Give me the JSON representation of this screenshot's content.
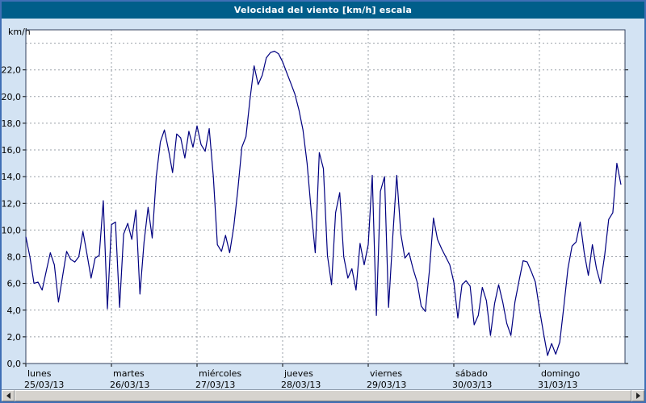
{
  "title_bar": {
    "text": "Velocidad del viento [km/h] escala"
  },
  "colors": {
    "background": "#d3e3f3",
    "titlebar_bg": "#005e8a",
    "titlebar_text": "#ffffff",
    "plot_bg": "#ffffff",
    "plot_border": "#33415c",
    "grid": "#9aa0a8",
    "line": "#000080",
    "axis_text": "#000000"
  },
  "scrollbar": {
    "left_arrow": "left-pointer",
    "right_arrow": "right-pointer"
  },
  "chart_data": {
    "type": "line",
    "title": "Velocidad del viento [km/h] escala",
    "ylabel": "km/h",
    "xlabel": "",
    "ylim": [
      0,
      25
    ],
    "grid": true,
    "legend": "none",
    "line_color": "#000080",
    "y_ticks": [
      {
        "v": 0,
        "label": "0,0"
      },
      {
        "v": 2,
        "label": "2,0"
      },
      {
        "v": 4,
        "label": "4,0"
      },
      {
        "v": 6,
        "label": "6,0"
      },
      {
        "v": 8,
        "label": "8,0"
      },
      {
        "v": 10,
        "label": "10,0"
      },
      {
        "v": 12,
        "label": "12,0"
      },
      {
        "v": 14,
        "label": "14,0"
      },
      {
        "v": 16,
        "label": "16,0"
      },
      {
        "v": 18,
        "label": "18,0"
      },
      {
        "v": 20,
        "label": "20,0"
      },
      {
        "v": 22,
        "label": "22,0"
      }
    ],
    "x_days": [
      {
        "day": "lunes",
        "date": "25/03/13"
      },
      {
        "day": "martes",
        "date": "26/03/13"
      },
      {
        "day": "miércoles",
        "date": "27/03/13"
      },
      {
        "day": "jueves",
        "date": "28/03/13"
      },
      {
        "day": "viernes",
        "date": "29/03/13"
      },
      {
        "day": "sábado",
        "date": "30/03/13"
      },
      {
        "day": "domingo",
        "date": "31/03/13"
      }
    ],
    "points_per_day": 21,
    "values": [
      9.5,
      8.0,
      6.0,
      6.1,
      5.5,
      6.9,
      8.3,
      7.4,
      4.6,
      6.5,
      8.4,
      7.8,
      7.6,
      8.0,
      9.9,
      8.2,
      6.4,
      7.9,
      8.1,
      12.2,
      4.1,
      10.4,
      10.6,
      4.2,
      9.7,
      10.5,
      9.3,
      11.5,
      5.2,
      9.1,
      11.7,
      9.4,
      14.0,
      16.6,
      17.5,
      16.0,
      14.3,
      17.2,
      16.9,
      15.4,
      17.4,
      16.2,
      17.8,
      16.4,
      15.9,
      17.6,
      14.0,
      8.9,
      8.4,
      9.6,
      8.3,
      10.2,
      13.0,
      16.2,
      17.0,
      19.8,
      22.3,
      20.9,
      21.6,
      22.9,
      23.3,
      23.4,
      23.2,
      22.6,
      21.8,
      21.0,
      20.2,
      19.0,
      17.5,
      15.0,
      11.5,
      8.3,
      15.8,
      14.6,
      8.1,
      5.9,
      11.3,
      12.8,
      8.0,
      6.4,
      7.1,
      5.5,
      9.0,
      7.4,
      8.9,
      14.1,
      3.6,
      12.9,
      14.0,
      4.2,
      9.4,
      14.1,
      9.7,
      7.9,
      8.3,
      7.1,
      6.1,
      4.3,
      3.9,
      6.9,
      10.9,
      9.3,
      8.6,
      8.0,
      7.4,
      6.1,
      3.4,
      5.9,
      6.2,
      5.8,
      2.9,
      3.6,
      5.7,
      4.7,
      2.1,
      4.5,
      5.9,
      4.6,
      3.0,
      2.1,
      4.6,
      6.2,
      7.7,
      7.6,
      6.9,
      6.1,
      4.1,
      2.3,
      0.6,
      1.5,
      0.7,
      1.6,
      4.3,
      7.1,
      8.8,
      9.1,
      10.6,
      8.3,
      6.6,
      8.9,
      7.1,
      6.0,
      8.1,
      10.8,
      11.3,
      15.0,
      13.4
    ]
  }
}
